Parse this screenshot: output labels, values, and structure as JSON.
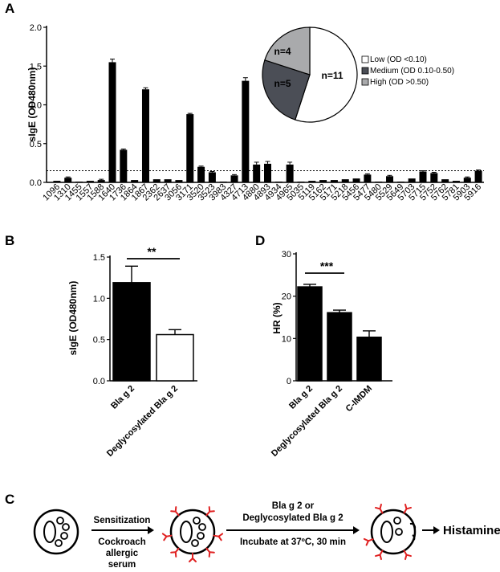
{
  "panels": {
    "a": "A",
    "b": "B",
    "d": "D",
    "c": "C"
  },
  "chart_data": [
    {
      "type": "bar",
      "panel": "A",
      "ylabel": "sIgE (OD480nm)",
      "ylim": [
        0,
        2.0
      ],
      "yticks": [
        "0.0",
        "0.5",
        "1.0",
        "1.5",
        "2.0"
      ],
      "threshold": 0.15,
      "categories": [
        "1096",
        "1310",
        "1455",
        "1557",
        "1588",
        "1640",
        "1736",
        "1864",
        "1867",
        "2362",
        "2637",
        "3056",
        "3171",
        "3520",
        "3523",
        "3983",
        "4327",
        "4713",
        "4880",
        "4893",
        "4934",
        "4965",
        "5035",
        "5119",
        "5162",
        "5171",
        "5218",
        "5456",
        "5477",
        "5480",
        "5529",
        "5649",
        "5703",
        "5715",
        "5752",
        "5762",
        "5781",
        "5903",
        "5916"
      ],
      "values": [
        0.02,
        0.06,
        0.01,
        0.02,
        0.03,
        1.55,
        0.42,
        0.03,
        1.2,
        0.04,
        0.04,
        0.03,
        0.88,
        0.2,
        0.13,
        0.01,
        0.09,
        1.31,
        0.23,
        0.24,
        0.01,
        0.23,
        0.01,
        0.02,
        0.03,
        0.03,
        0.04,
        0.05,
        0.1,
        0.01,
        0.08,
        0.01,
        0.05,
        0.14,
        0.12,
        0.04,
        0.02,
        0.06,
        0.15
      ],
      "errors": [
        0,
        0.01,
        0,
        0,
        0.01,
        0.04,
        0.01,
        0,
        0.02,
        0,
        0,
        0,
        0.01,
        0.01,
        0.01,
        0,
        0.01,
        0.04,
        0.03,
        0.03,
        0,
        0.03,
        0,
        0,
        0,
        0,
        0,
        0,
        0.01,
        0,
        0.01,
        0,
        0,
        0.01,
        0.01,
        0,
        0,
        0.01,
        0.01
      ]
    },
    {
      "type": "pie",
      "panel": "A-inset",
      "slices": [
        {
          "label": "n=11",
          "value": 11,
          "color": "#ffffff"
        },
        {
          "label": "n=5",
          "value": 5,
          "color": "#4b4e56"
        },
        {
          "label": "n=4",
          "value": 4,
          "color": "#a9aaac"
        }
      ],
      "legend": [
        {
          "label": "Low (OD <0.10)",
          "color": "#ffffff"
        },
        {
          "label": "Medium (OD 0.10-0.50)",
          "color": "#4b4e56"
        },
        {
          "label": "High (OD >0.50)",
          "color": "#a9aaac"
        }
      ],
      "legend_position": "right"
    },
    {
      "type": "bar",
      "panel": "B",
      "ylabel": "sIgE (OD480nm)",
      "ylim": [
        0,
        1.5
      ],
      "yticks": [
        "0.0",
        "0.5",
        "1.0",
        "1.5"
      ],
      "categories": [
        "Bla g 2",
        "Deglycosylated Bla g 2"
      ],
      "values": [
        1.19,
        0.56
      ],
      "errors": [
        0.2,
        0.06
      ],
      "fills": [
        "#000000",
        "#ffffff"
      ],
      "significance": "**"
    },
    {
      "type": "bar",
      "panel": "D",
      "ylabel": "HR (%)",
      "ylim": [
        0,
        30
      ],
      "yticks": [
        "0",
        "10",
        "20",
        "30"
      ],
      "categories": [
        "Bla g 2",
        "Deglycosylated Bla g 2",
        "C-IMDM"
      ],
      "values": [
        22.2,
        16.1,
        10.3
      ],
      "errors": [
        0.6,
        0.6,
        1.5
      ],
      "significance": "***"
    }
  ],
  "schematic": {
    "step1_top": "Sensitization",
    "step1_bottom": [
      "Cockroach",
      "allergic",
      "serum"
    ],
    "step2_top": [
      "Bla g 2 or",
      "Deglycosylated Bla g 2"
    ],
    "step2_bottom": "Incubate at 37ºC, 30 min",
    "result": "Histamine",
    "receptor_color": "#e02020"
  }
}
